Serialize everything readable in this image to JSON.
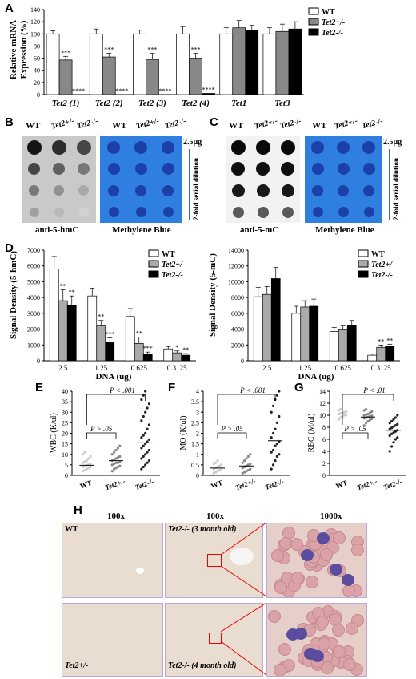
{
  "panels": {
    "a": "A",
    "b": "B",
    "c": "C",
    "d": "D",
    "e": "E",
    "f": "F",
    "g": "G",
    "h": "H"
  },
  "genotypes": {
    "wt": "WT",
    "het": "Tet2+/-",
    "ko": "Tet2-/-",
    "ko_3m": "Tet2-/- (3 month old)",
    "ko_4m": "Tet2-/- (4 month old)"
  },
  "panel_a": {
    "ylabel_line1": "Relative mRNA",
    "ylabel_line2": "Expression (%)",
    "yticks": [
      "0",
      "20",
      "40",
      "60",
      "80",
      "100",
      "120",
      "140"
    ],
    "categories": [
      "Tet2 (1)",
      "Tet2 (2)",
      "Tet2 (3)",
      "Tet2 (4)",
      "Tet1",
      "Tet3"
    ],
    "sig_het": "***",
    "sig_ko": "****"
  },
  "panel_b": {
    "amount": "2.5μg",
    "dilution": "2-fold serial dilution",
    "stain_left": "anti-5-hmC",
    "stain_right": "Methylene Blue"
  },
  "panel_c": {
    "amount": "2.5μg",
    "dilution": "2-fold serial dilution",
    "stain_left": "anti-5-mC",
    "stain_right": "Methylene Blue"
  },
  "panel_d": {
    "left_ylabel": "Signal Density (5-hmC)",
    "right_ylabel": "Signal Density (5-mC)",
    "xlabel": "DNA (ug)",
    "left_yticks": [
      "0",
      "1000",
      "2000",
      "3000",
      "4000",
      "5000",
      "6000",
      "7000"
    ],
    "right_yticks": [
      "0",
      "2000",
      "4000",
      "6000",
      "8000",
      "10000",
      "12000",
      "14000"
    ],
    "x_categories": [
      "2.5",
      "1.25",
      "0.625",
      "0.3125"
    ]
  },
  "panel_e": {
    "ylabel": "WBC (K/ul)",
    "yticks": [
      "0",
      "5",
      "10",
      "15",
      "20",
      "25",
      "30",
      "35",
      "40"
    ],
    "p_low": "P > .05",
    "p_high": "P < .001"
  },
  "panel_f": {
    "ylabel": "MO (K/ul)",
    "yticks": [
      "0",
      "0.5",
      "1",
      "1.5",
      "2",
      "2.5",
      "3",
      "3.5",
      "4"
    ],
    "p_low": "P > .05",
    "p_high": "P < .001"
  },
  "panel_g": {
    "ylabel": "RBC (M/ul)",
    "yticks": [
      "0",
      "2",
      "4",
      "6",
      "8",
      "10",
      "12",
      "14"
    ],
    "p_low": "P > .05",
    "p_high": "P < .01"
  },
  "panel_h": {
    "mag_low": "100x",
    "mag_high": "1000x"
  },
  "chart_data": [
    {
      "type": "bar",
      "panel": "A",
      "ylabel": "Relative mRNA Expression (%)",
      "ylim": [
        0,
        140
      ],
      "categories": [
        "Tet2 (1)",
        "Tet2 (2)",
        "Tet2 (3)",
        "Tet2 (4)",
        "Tet1",
        "Tet3"
      ],
      "series": [
        {
          "name": "WT",
          "color": "#ffffff",
          "values": [
            100,
            100,
            100,
            100,
            100,
            100
          ],
          "err": [
            5,
            8,
            6,
            12,
            10,
            10
          ]
        },
        {
          "name": "Tet2+/-",
          "color": "#888888",
          "values": [
            57,
            62,
            58,
            60,
            110,
            104
          ],
          "err": [
            6,
            6,
            10,
            8,
            12,
            12
          ]
        },
        {
          "name": "Tet2-/-",
          "color": "#000000",
          "values": [
            0,
            0,
            0,
            2,
            106,
            108
          ],
          "err": [
            0,
            0,
            0,
            0,
            8,
            12
          ]
        }
      ]
    },
    {
      "type": "bar",
      "panel": "D-left",
      "ylabel": "Signal Density (5-hmC)",
      "xlabel": "DNA (ug)",
      "ylim": [
        0,
        7000
      ],
      "categories": [
        "2.5",
        "1.25",
        "0.625",
        "0.3125"
      ],
      "series": [
        {
          "name": "WT",
          "color": "#ffffff",
          "values": [
            5800,
            4100,
            2800,
            750
          ],
          "err": [
            800,
            500,
            500,
            150
          ]
        },
        {
          "name": "Tet2+/-",
          "color": "#aaaaaa",
          "values": [
            3800,
            2200,
            1100,
            500
          ],
          "err": [
            700,
            350,
            400,
            120
          ]
        },
        {
          "name": "Tet2-/-",
          "color": "#000000",
          "values": [
            3500,
            1150,
            400,
            350
          ],
          "err": [
            600,
            300,
            150,
            100
          ]
        }
      ],
      "sig": [
        [
          "**",
          "**"
        ],
        [
          "**",
          "***"
        ],
        [
          "**",
          "***"
        ],
        [
          "*",
          "**"
        ]
      ]
    },
    {
      "type": "bar",
      "panel": "D-right",
      "ylabel": "Signal Density (5-mC)",
      "xlabel": "DNA (ug)",
      "ylim": [
        0,
        14000
      ],
      "categories": [
        "2.5",
        "1.25",
        "0.625",
        "0.3125"
      ],
      "series": [
        {
          "name": "WT",
          "color": "#ffffff",
          "values": [
            8100,
            6000,
            3700,
            700
          ],
          "err": [
            1200,
            900,
            500,
            150
          ]
        },
        {
          "name": "Tet2+/-",
          "color": "#aaaaaa",
          "values": [
            8400,
            6800,
            3900,
            1700
          ],
          "err": [
            1000,
            800,
            500,
            300
          ]
        },
        {
          "name": "Tet2-/-",
          "color": "#000000",
          "values": [
            10400,
            6900,
            4500,
            1800
          ],
          "err": [
            1400,
            900,
            600,
            300
          ]
        }
      ],
      "sig": [
        [
          "",
          ""
        ],
        [
          "",
          ""
        ],
        [
          "",
          ""
        ],
        [
          "**",
          "**"
        ]
      ]
    },
    {
      "type": "scatter",
      "panel": "E",
      "ylabel": "WBC (K/ul)",
      "ylim": [
        0,
        40
      ],
      "categories": [
        "WT",
        "Tet2+/-",
        "Tet2-/-"
      ],
      "means": [
        4.8,
        7.0,
        15.5
      ],
      "colors": [
        "#cccccc",
        "#888888",
        "#222222"
      ],
      "points": [
        [
          2,
          2.5,
          3,
          3.5,
          4,
          4,
          4.5,
          5,
          5,
          5.5,
          6,
          6.5,
          7,
          8,
          9,
          10,
          11
        ],
        [
          2,
          3,
          3.5,
          4,
          4.5,
          5,
          5.5,
          6,
          6,
          6.5,
          7,
          7.5,
          8,
          8.5,
          9,
          10,
          11,
          12,
          13,
          14
        ],
        [
          3,
          4,
          5,
          6,
          7,
          8,
          9,
          10,
          11,
          12,
          13,
          14,
          15,
          16,
          17,
          18,
          19,
          20,
          22,
          24,
          26,
          28,
          30,
          32,
          34,
          36,
          38,
          40
        ]
      ]
    },
    {
      "type": "scatter",
      "panel": "F",
      "ylabel": "MO (K/ul)",
      "ylim": [
        0,
        4
      ],
      "categories": [
        "WT",
        "Tet2+/-",
        "Tet2-/-"
      ],
      "means": [
        0.35,
        0.45,
        1.65
      ],
      "colors": [
        "#cccccc",
        "#888888",
        "#222222"
      ],
      "points": [
        [
          0.1,
          0.15,
          0.2,
          0.25,
          0.3,
          0.3,
          0.35,
          0.4,
          0.45,
          0.5,
          0.55,
          0.6,
          0.7
        ],
        [
          0.1,
          0.15,
          0.2,
          0.25,
          0.3,
          0.35,
          0.4,
          0.45,
          0.5,
          0.55,
          0.6,
          0.7,
          0.8,
          0.9,
          1.0
        ],
        [
          0.3,
          0.5,
          0.7,
          0.9,
          1.0,
          1.1,
          1.2,
          1.4,
          1.5,
          1.6,
          1.8,
          2.0,
          2.2,
          2.5,
          2.8,
          3.0,
          3.3,
          3.6,
          3.8,
          4.0
        ]
      ]
    },
    {
      "type": "scatter",
      "panel": "G",
      "ylabel": "RBC (M/ul)",
      "ylim": [
        0,
        14
      ],
      "categories": [
        "WT",
        "Tet2+/-",
        "Tet2-/-"
      ],
      "means": [
        10.2,
        9.7,
        7.5
      ],
      "colors": [
        "#cccccc",
        "#888888",
        "#222222"
      ],
      "points": [
        [
          9.3,
          9.6,
          9.8,
          10,
          10.1,
          10.2,
          10.3,
          10.4,
          10.5,
          10.6,
          10.8,
          11
        ],
        [
          8.3,
          8.7,
          9,
          9.2,
          9.4,
          9.5,
          9.6,
          9.7,
          9.8,
          9.9,
          10,
          10.1,
          10.2,
          10.4,
          10.6,
          10.8,
          11
        ],
        [
          4,
          4.8,
          5.5,
          6,
          6.3,
          6.6,
          6.9,
          7.1,
          7.3,
          7.5,
          7.7,
          7.9,
          8.1,
          8.3,
          8.5,
          8.7,
          9,
          9.3,
          9.6,
          10
        ]
      ]
    }
  ]
}
